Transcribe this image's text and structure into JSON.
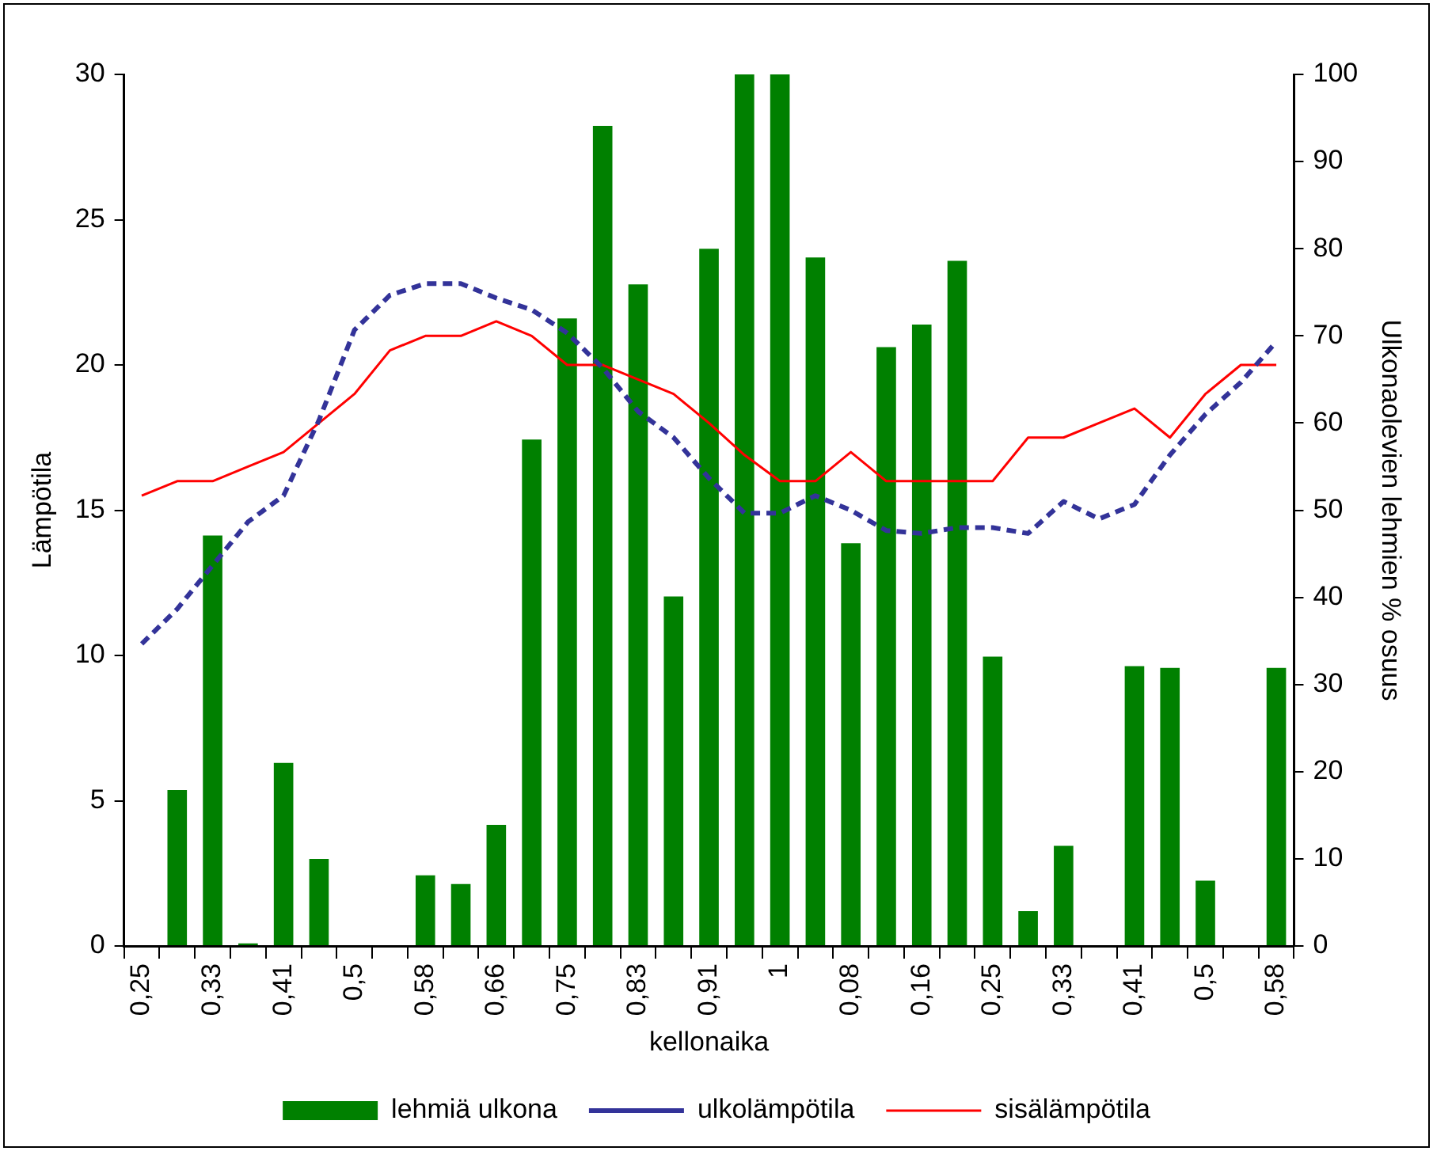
{
  "chart_data": {
    "type": "bar",
    "xlabel": "kellonaika",
    "ylabel": "Lämpötila",
    "y2label": "Ulkonaolevien lehmien % osuus",
    "categories": [
      "0,25",
      null,
      "0,33",
      null,
      "0,41",
      null,
      "0,5",
      null,
      "0,58",
      null,
      "0,66",
      null,
      "0,75",
      null,
      "0,83",
      null,
      "0,91",
      null,
      "1",
      null,
      "0,08",
      null,
      "0,16",
      null,
      "0,25",
      null,
      "0,33",
      null,
      "0,41",
      null,
      "0,5",
      null,
      "0,58"
    ],
    "series": [
      {
        "name": "lehmiä ulkona",
        "axis": "y2",
        "color": "#008000",
        "values": [
          0,
          17.9,
          47.1,
          0.3,
          21,
          10,
          0,
          0,
          8.1,
          7.1,
          13.9,
          58.1,
          72,
          94.1,
          75.9,
          40.1,
          80,
          100,
          100,
          79,
          46.2,
          68.7,
          71.3,
          78.6,
          33.2,
          4,
          11.5,
          0,
          32.1,
          31.9,
          7.5,
          0,
          31.9
        ]
      },
      {
        "name": "ulkolämpötila",
        "type": "line",
        "line_style": "dashed",
        "color": "#333399",
        "values": [
          10.4,
          11.6,
          13.1,
          14.6,
          15.5,
          18.1,
          21.2,
          22.4,
          22.8,
          22.8,
          22.3,
          21.9,
          21.1,
          19.9,
          18.4,
          17.5,
          16.1,
          14.9,
          14.9,
          15.5,
          15,
          14.3,
          14.2,
          14.4,
          14.4,
          14.2,
          15.3,
          14.7,
          15.2,
          16.9,
          18.3,
          19.4,
          20.8
        ]
      },
      {
        "name": "sisälämpötila",
        "type": "line",
        "line_style": "solid",
        "color": "#ff0000",
        "values": [
          15.5,
          16,
          16,
          16.5,
          17,
          18,
          19,
          20.5,
          21,
          21,
          21.5,
          21,
          20,
          20,
          19.5,
          19,
          18,
          16.9,
          16,
          16,
          17,
          16,
          16,
          16,
          16,
          17.5,
          17.5,
          18,
          18.5,
          17.5,
          19,
          20,
          20
        ]
      }
    ],
    "ylim": [
      0,
      30
    ],
    "yticks": [
      0,
      5,
      10,
      15,
      20,
      25,
      30
    ],
    "y2lim": [
      0,
      100
    ],
    "y2ticks": [
      0,
      10,
      20,
      30,
      40,
      50,
      60,
      70,
      80,
      90,
      100
    ],
    "grid": false,
    "legend": "bottom",
    "marker": "none"
  }
}
